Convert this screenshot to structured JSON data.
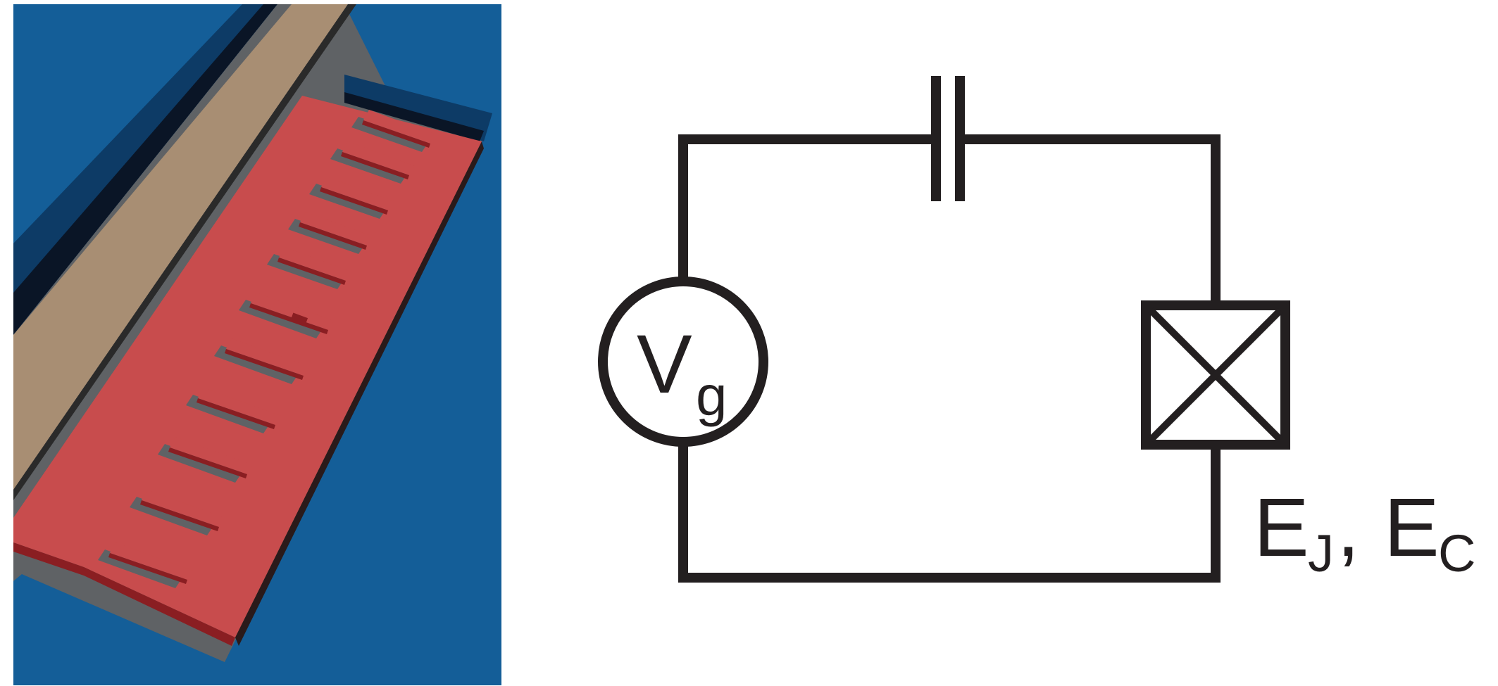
{
  "colors": {
    "substrate": "#145e98",
    "substrate_dark": "#0d3b66",
    "lead_dark": "#0a1526",
    "tan_lead": "#a88e73",
    "shadow_gray": "#5f6265",
    "island_red": "#c84c4d",
    "island_edge": "#8a1e22",
    "wire": "#231f20"
  },
  "icons": {
    "source": "voltage-source-circle-icon",
    "capacitor": "capacitor-icon",
    "junction": "josephson-junction-icon"
  },
  "circuit": {
    "source_label_main": "V",
    "source_label_sub": "g",
    "junction_label_e1": "E",
    "junction_label_sub1": "J",
    "junction_label_sep": ",",
    "junction_label_e2": "E",
    "junction_label_sub2": "C"
  }
}
